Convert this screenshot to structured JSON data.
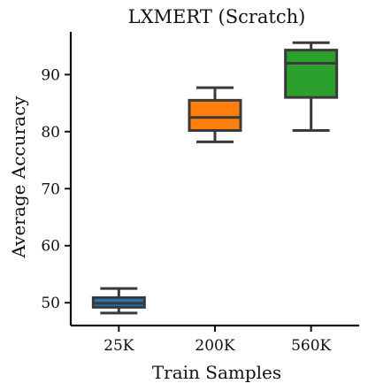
{
  "chart_data": {
    "type": "box",
    "title": "LXMERT (Scratch)",
    "xlabel": "Train Samples",
    "ylabel": "Average Accuracy",
    "categories": [
      "25K",
      "200K",
      "560K"
    ],
    "colors": [
      "#1f77b4",
      "#ff7f0e",
      "#2ca02c"
    ],
    "boxes": [
      {
        "category": "25K",
        "whisker_low": 48.2,
        "q1": 49.2,
        "median": 49.9,
        "q3": 50.9,
        "whisker_high": 52.5
      },
      {
        "category": "200K",
        "whisker_low": 78.2,
        "q1": 80.2,
        "median": 82.5,
        "q3": 85.5,
        "whisker_high": 87.7
      },
      {
        "category": "560K",
        "whisker_low": 80.2,
        "q1": 86.0,
        "median": 92.0,
        "q3": 94.3,
        "whisker_high": 95.6
      }
    ],
    "ylim": [
      46.0,
      97.5
    ],
    "yticks": [
      50,
      60,
      70,
      80,
      90
    ],
    "grid": false,
    "legend": "none"
  }
}
